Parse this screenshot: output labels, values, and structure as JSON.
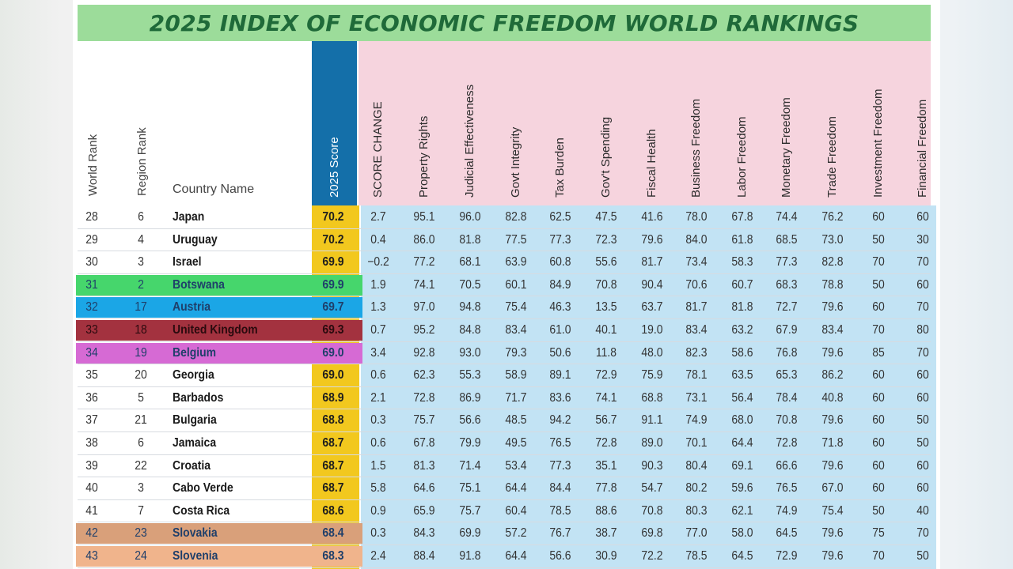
{
  "title": "2025 INDEX OF ECONOMIC FREEDOM WORLD RANKINGS",
  "columns": {
    "world_rank": "World Rank",
    "region_rank": "Region Rank",
    "country_name": "Country Name",
    "score": "2025 Score",
    "indicators": [
      "SCORE CHANGE",
      "Property Rights",
      "Judicial Effectiveness",
      "Govt Integrity",
      "Tax Burden",
      "Gov't Spending",
      "Fiscal Health",
      "Business Freedom",
      "Labor Freedom",
      "Monetary Freedom",
      "Trade Freedom",
      "Investment Freedom",
      "Financial Freedom"
    ]
  },
  "colors": {
    "title_bg": "#9cdc9a",
    "title_text": "#1f6a39",
    "score_header_bg": "#146fa9",
    "score_col_bg": "#f2c81e",
    "indicator_header_bg": "#f6d4de",
    "indicator_body_bg": "#c2e3f4"
  },
  "rows": [
    {
      "world_rank": "28",
      "region_rank": "6",
      "country": "Japan",
      "score": "70.2",
      "values": [
        "2.7",
        "95.1",
        "96.0",
        "82.8",
        "62.5",
        "47.5",
        "41.6",
        "78.0",
        "67.8",
        "74.4",
        "76.2",
        "60",
        "60"
      ]
    },
    {
      "world_rank": "29",
      "region_rank": "4",
      "country": "Uruguay",
      "score": "70.2",
      "values": [
        "0.4",
        "86.0",
        "81.8",
        "77.5",
        "77.3",
        "72.3",
        "79.6",
        "84.0",
        "61.8",
        "68.5",
        "73.0",
        "50",
        "30"
      ]
    },
    {
      "world_rank": "30",
      "region_rank": "3",
      "country": "Israel",
      "score": "69.9",
      "values": [
        "−0.2",
        "77.2",
        "68.1",
        "63.9",
        "60.8",
        "55.6",
        "81.7",
        "73.4",
        "58.3",
        "77.3",
        "82.8",
        "70",
        "70"
      ]
    },
    {
      "world_rank": "31",
      "region_rank": "2",
      "country": "Botswana",
      "score": "69.9",
      "highlight": "#46d66c",
      "values": [
        "1.9",
        "74.1",
        "70.5",
        "60.1",
        "84.9",
        "70.8",
        "90.4",
        "70.6",
        "60.7",
        "68.3",
        "78.8",
        "50",
        "60"
      ]
    },
    {
      "world_rank": "32",
      "region_rank": "17",
      "country": "Austria",
      "score": "69.7",
      "highlight": "#1ba6e6",
      "values": [
        "1.3",
        "97.0",
        "94.8",
        "75.4",
        "46.3",
        "13.5",
        "63.7",
        "81.7",
        "81.8",
        "72.7",
        "79.6",
        "60",
        "70"
      ]
    },
    {
      "world_rank": "33",
      "region_rank": "18",
      "country": "United Kingdom",
      "score": "69.3",
      "highlight": "#a3323f",
      "values": [
        "0.7",
        "95.2",
        "84.8",
        "83.4",
        "61.0",
        "40.1",
        "19.0",
        "83.4",
        "63.2",
        "67.9",
        "83.4",
        "70",
        "80"
      ]
    },
    {
      "world_rank": "34",
      "region_rank": "19",
      "country": "Belgium",
      "score": "69.0",
      "highlight": "#d66ad4",
      "values": [
        "3.4",
        "92.8",
        "93.0",
        "79.3",
        "50.6",
        "11.8",
        "48.0",
        "82.3",
        "58.6",
        "76.8",
        "79.6",
        "85",
        "70"
      ]
    },
    {
      "world_rank": "35",
      "region_rank": "20",
      "country": "Georgia",
      "score": "69.0",
      "values": [
        "0.6",
        "62.3",
        "55.3",
        "58.9",
        "89.1",
        "72.9",
        "75.9",
        "78.1",
        "63.5",
        "65.3",
        "86.2",
        "60",
        "60"
      ]
    },
    {
      "world_rank": "36",
      "region_rank": "5",
      "country": "Barbados",
      "score": "68.9",
      "values": [
        "2.1",
        "72.8",
        "86.9",
        "71.7",
        "83.6",
        "74.1",
        "68.8",
        "73.1",
        "56.4",
        "78.4",
        "40.8",
        "60",
        "60"
      ]
    },
    {
      "world_rank": "37",
      "region_rank": "21",
      "country": "Bulgaria",
      "score": "68.8",
      "values": [
        "0.3",
        "75.7",
        "56.6",
        "48.5",
        "94.2",
        "56.7",
        "91.1",
        "74.9",
        "68.0",
        "70.8",
        "79.6",
        "60",
        "50"
      ]
    },
    {
      "world_rank": "38",
      "region_rank": "6",
      "country": "Jamaica",
      "score": "68.7",
      "values": [
        "0.6",
        "67.8",
        "79.9",
        "49.5",
        "76.5",
        "72.8",
        "89.0",
        "70.1",
        "64.4",
        "72.8",
        "71.8",
        "60",
        "50"
      ]
    },
    {
      "world_rank": "39",
      "region_rank": "22",
      "country": "Croatia",
      "score": "68.7",
      "values": [
        "1.5",
        "81.3",
        "71.4",
        "53.4",
        "77.3",
        "35.1",
        "90.3",
        "80.4",
        "69.1",
        "66.6",
        "79.6",
        "60",
        "60"
      ]
    },
    {
      "world_rank": "40",
      "region_rank": "3",
      "country": "Cabo Verde",
      "score": "68.7",
      "values": [
        "5.8",
        "64.6",
        "75.1",
        "64.4",
        "84.4",
        "77.8",
        "54.7",
        "80.2",
        "59.6",
        "76.5",
        "67.0",
        "60",
        "60"
      ]
    },
    {
      "world_rank": "41",
      "region_rank": "7",
      "country": "Costa Rica",
      "score": "68.6",
      "values": [
        "0.9",
        "65.9",
        "75.7",
        "60.4",
        "78.5",
        "88.6",
        "70.8",
        "80.3",
        "62.1",
        "74.9",
        "75.4",
        "50",
        "40"
      ]
    },
    {
      "world_rank": "42",
      "region_rank": "23",
      "country": "Slovakia",
      "score": "68.4",
      "highlight": "#d9a07a",
      "values": [
        "0.3",
        "84.3",
        "69.9",
        "57.2",
        "76.7",
        "38.7",
        "69.8",
        "77.0",
        "58.0",
        "64.5",
        "79.6",
        "75",
        "70"
      ]
    },
    {
      "world_rank": "43",
      "region_rank": "24",
      "country": "Slovenia",
      "score": "68.3",
      "highlight": "#f0b48c",
      "values": [
        "2.4",
        "88.4",
        "91.8",
        "64.4",
        "56.6",
        "30.9",
        "72.2",
        "78.5",
        "64.5",
        "72.9",
        "79.6",
        "70",
        "50"
      ]
    }
  ]
}
